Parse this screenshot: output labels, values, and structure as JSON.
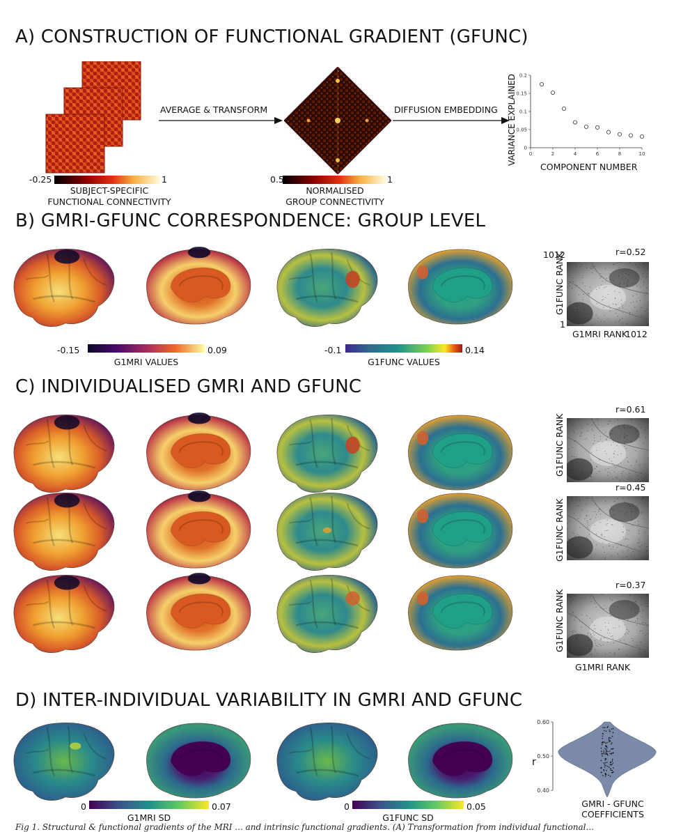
{
  "sections": {
    "a_title": "A) CONSTRUCTION OF FUNCTIONAL GRADIENT (GFUNC)",
    "b_title": "B) GMRI-GFUNC CORRESPONDENCE: GROUP LEVEL",
    "c_title": "C) INDIVIDUALISED GMRI AND GFUNC",
    "d_title": "D) INTER-INDIVIDUAL VARIABILITY IN GMRI AND GFUNC"
  },
  "panel_a": {
    "arrow1_label": "AVERAGE & TRANSFORM",
    "arrow2_label": "DIFFUSION EMBEDDING",
    "cbar1_min": "-0.25",
    "cbar1_max": "1",
    "cbar1_label_line1": "SUBJECT-SPECIFIC",
    "cbar1_label_line2": "FUNCTIONAL CONNECTIVITY",
    "cbar2_min": "0.5",
    "cbar2_max": "1",
    "cbar2_label_line1": "NORMALISED",
    "cbar2_label_line2": "GROUP CONNECTIVITY"
  },
  "panel_b": {
    "cbar1_min": "-0.15",
    "cbar1_max": "0.09",
    "cbar1_label": "G1MRI VALUES",
    "cbar2_min": "-0.1",
    "cbar2_max": "0.14",
    "cbar2_label": "G1FUNC VALUES",
    "scatter_r": "r=0.52",
    "scatter_ytop": "1012",
    "scatter_ylabel": "G1FUNC RANK",
    "scatter_xlabel": "G1MRI RANK",
    "scatter_xmax": "1012",
    "scatter_ymin": "1"
  },
  "panel_c": {
    "r_values": [
      "r=0.61",
      "r=0.45",
      "r=0.37"
    ],
    "ylabel": "G1FUNC RANK",
    "xlabel": "G1MRI RANK"
  },
  "panel_d": {
    "cbar1_min": "0",
    "cbar1_max": "0.07",
    "cbar1_label": "G1MRI SD",
    "cbar2_min": "0",
    "cbar2_max": "0.05",
    "cbar2_label": "G1FUNC SD",
    "violin_ylabel": "r",
    "violin_ticks": [
      "0.60",
      "0.50",
      "0.40"
    ],
    "violin_label_line1": "GMRI - GFUNC",
    "violin_label_line2": "COEFFICIENTS"
  },
  "caption": "Fig 1. Structural & functional gradients of the MRI ... and intrinsic functional gradients. (A) Transformation from individual functional...",
  "chart_data": {
    "type": "scatter",
    "title": "",
    "xlabel": "COMPONENT NUMBER",
    "ylabel": "VARIANCE EXPLAINED",
    "x": [
      1,
      2,
      3,
      4,
      5,
      6,
      7,
      8,
      9,
      10
    ],
    "y": [
      0.175,
      0.152,
      0.108,
      0.07,
      0.058,
      0.056,
      0.043,
      0.037,
      0.034,
      0.031
    ],
    "xlim": [
      0,
      10
    ],
    "ylim": [
      0,
      0.2
    ],
    "xticks": [
      "0",
      "2",
      "4",
      "6",
      "8",
      "10"
    ],
    "yticks": [
      "0",
      "0.05",
      "0.1",
      "0.15",
      "0.2"
    ],
    "grid": false
  },
  "colors": {
    "hot": [
      "#1a0000",
      "#8b0000",
      "#e03010",
      "#f08020",
      "#f8e070",
      "#fffbe0"
    ],
    "inferno": [
      "#0d0829",
      "#4a0c6b",
      "#a52c60",
      "#ed6925",
      "#fbb43a",
      "#fcffa4"
    ],
    "viridis_ext": [
      "#3b2a8c",
      "#31688e",
      "#21918c",
      "#35b779",
      "#fde725",
      "#e85d10",
      "#9e1a1a"
    ],
    "viridis": [
      "#440154",
      "#3b528b",
      "#21918c",
      "#5ec962",
      "#fde725"
    ],
    "violin": "#7a8aa8"
  }
}
